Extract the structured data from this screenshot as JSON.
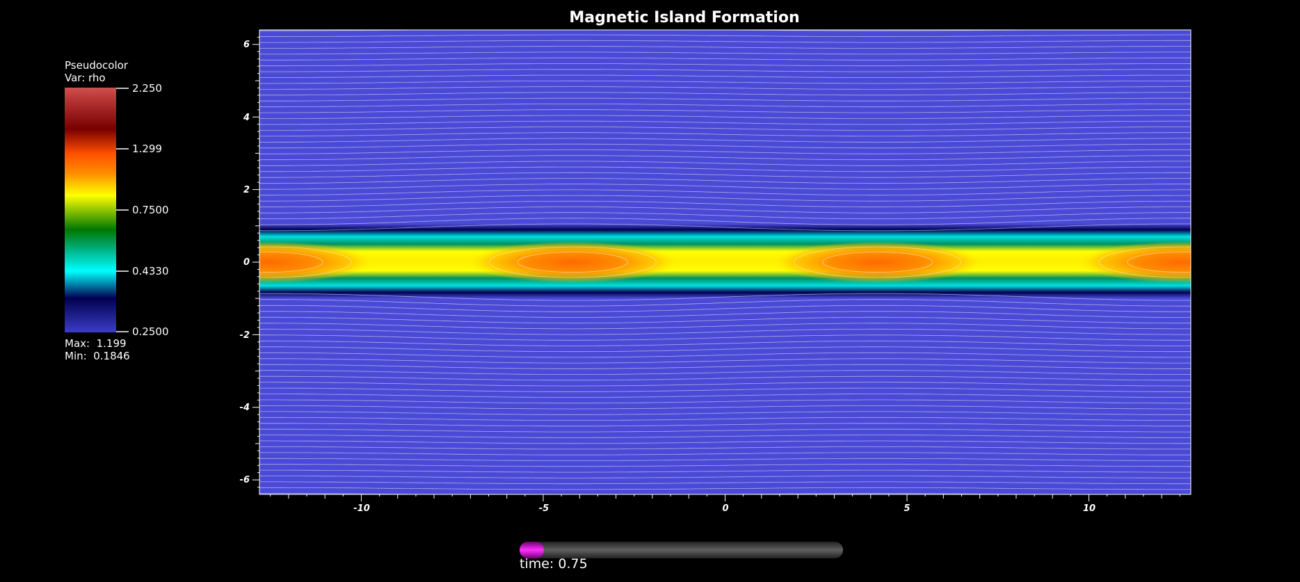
{
  "title": "Magnetic Island Formation",
  "legend": {
    "plot_type": "Pseudocolor",
    "variable": "Var: rho",
    "ticks": [
      "2.250",
      "1.299",
      "0.7500",
      "0.4330",
      "0.2500"
    ],
    "max_label": "Max:",
    "max_value": "1.199",
    "min_label": "Min:",
    "min_value": "0.1846",
    "colormap": [
      "#3c3cc8",
      "#000050",
      "#00ffff",
      "#009060",
      "#007800",
      "#ffff00",
      "#ff8c00",
      "#ff5000",
      "#780000",
      "#d05050"
    ]
  },
  "axes": {
    "x_ticks": [
      "-10",
      "-5",
      "0",
      "5",
      "10"
    ],
    "y_ticks": [
      "6",
      "4",
      "2",
      "0",
      "-2",
      "-4",
      "-6"
    ],
    "x_range": [
      -12.8,
      12.8
    ],
    "y_range": [
      -6.4,
      6.4
    ]
  },
  "field": {
    "background_color": "#4a4ad6",
    "island_centers_x": [
      -12.57,
      -4.19,
      4.19,
      12.57
    ],
    "x_points_x": [
      -8.38,
      0,
      8.38
    ]
  },
  "time_slider": {
    "label": "time: 0.75",
    "progress": 0.075,
    "fill_color": "#e000e0"
  }
}
